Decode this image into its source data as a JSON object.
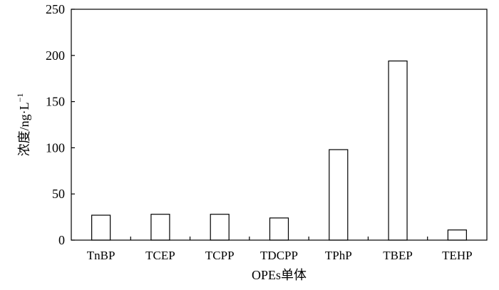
{
  "chart_data": {
    "type": "bar",
    "categories": [
      "TnBP",
      "TCEP",
      "TCPP",
      "TDCPP",
      "TPhP",
      "TBEP",
      "TEHP"
    ],
    "values": [
      27,
      28,
      28,
      24,
      98,
      194,
      11
    ],
    "xlabel": "OPEs单体",
    "ylabel": "浓度/ng·L",
    "ylabel_superscript": "−1",
    "ylim": [
      0,
      250
    ],
    "yticks": [
      0,
      50,
      100,
      150,
      200,
      250
    ],
    "grid": false,
    "legend": "none",
    "bar_fill": "#ffffff",
    "bar_stroke": "#000000"
  }
}
